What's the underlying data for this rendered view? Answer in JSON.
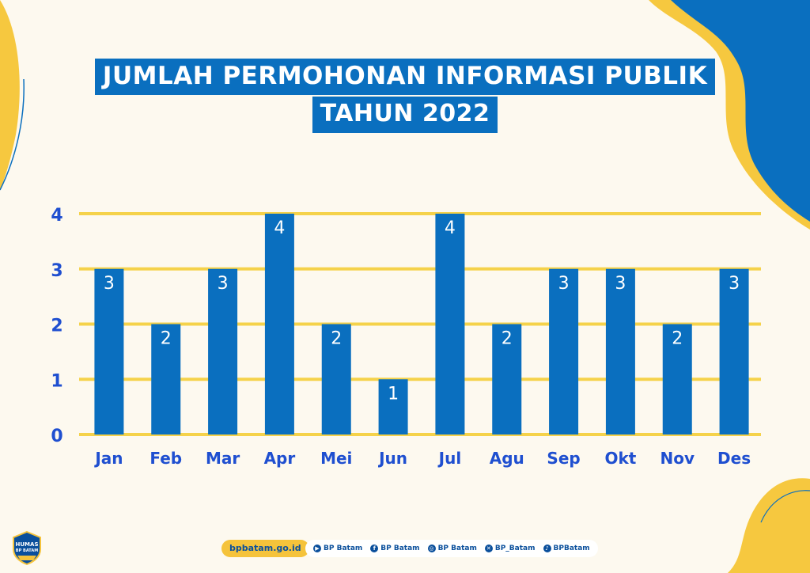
{
  "header": {
    "title_line1": "JUMLAH PERMOHONAN INFORMASI PUBLIK",
    "title_line2": "TAHUN 2022"
  },
  "colors": {
    "bar": "#0a6fbf",
    "grid": "#f5d24a",
    "axis_text": "#1f4fd0",
    "label_text": "#ffffff"
  },
  "chart_data": {
    "type": "bar",
    "title": "JUMLAH PERMOHONAN INFORMASI PUBLIK TAHUN 2022",
    "categories": [
      "Jan",
      "Feb",
      "Mar",
      "Apr",
      "Mei",
      "Jun",
      "Jul",
      "Agu",
      "Sep",
      "Okt",
      "Nov",
      "Des"
    ],
    "values": [
      3,
      2,
      3,
      4,
      2,
      1,
      4,
      2,
      3,
      3,
      2,
      3
    ],
    "ylim": [
      0,
      4
    ],
    "yticks": [
      0,
      1,
      2,
      3,
      4
    ],
    "xlabel": "",
    "ylabel": "",
    "grid": true,
    "data_labels": true
  },
  "footer": {
    "site": "bpbatam.go.id",
    "socials": [
      {
        "icon": "youtube-icon",
        "glyph": "▶",
        "label": "BP Batam"
      },
      {
        "icon": "facebook-icon",
        "glyph": "f",
        "label": "BP Batam"
      },
      {
        "icon": "instagram-icon",
        "glyph": "◎",
        "label": "BP Batam"
      },
      {
        "icon": "x-icon",
        "glyph": "✕",
        "label": "BP_Batam"
      },
      {
        "icon": "tiktok-icon",
        "glyph": "♪",
        "label": "BPBatam"
      }
    ],
    "logo_line1": "HUMAS",
    "logo_line2": "BP BATAM"
  }
}
